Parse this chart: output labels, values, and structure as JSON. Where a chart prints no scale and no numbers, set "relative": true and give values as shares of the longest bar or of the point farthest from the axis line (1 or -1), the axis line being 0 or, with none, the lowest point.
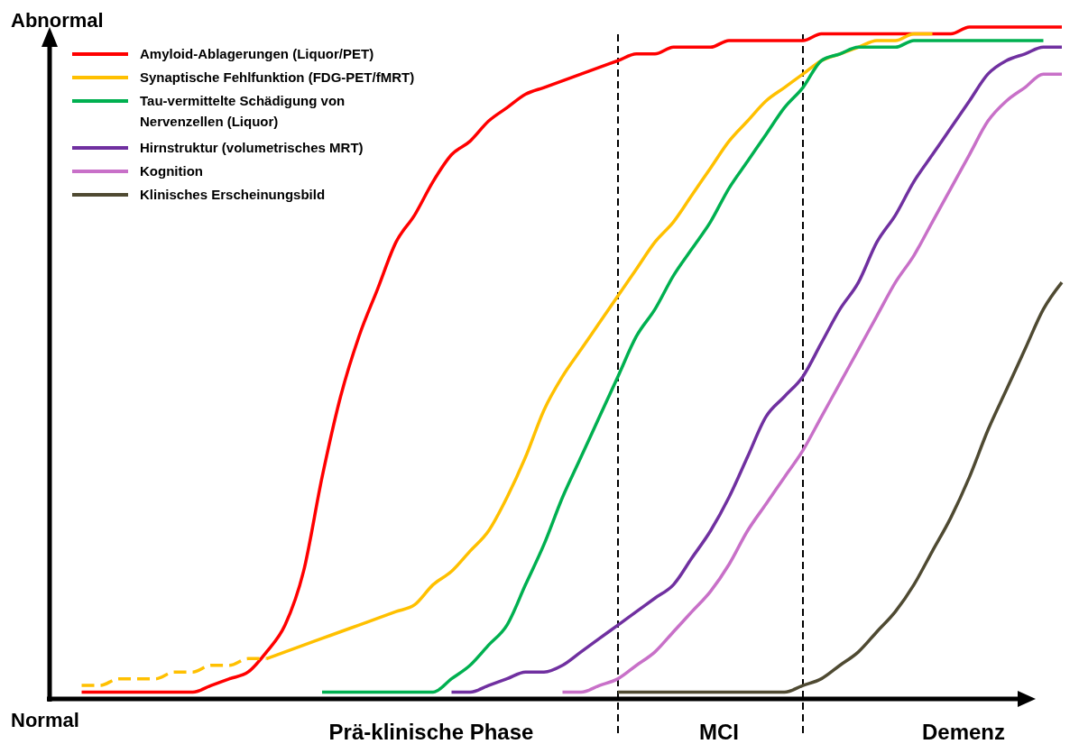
{
  "chart_data": {
    "type": "line",
    "relative": true,
    "legend": "top left",
    "categories": [
      null,
      null,
      null,
      null,
      null,
      null,
      null,
      null,
      null,
      null,
      null,
      null,
      null,
      null,
      null,
      null,
      null,
      null,
      null,
      null,
      null,
      null,
      null,
      null,
      null,
      null,
      null,
      null,
      null,
      null,
      null,
      null,
      null,
      null,
      null,
      null,
      null,
      null,
      null,
      null,
      null,
      null,
      null,
      null,
      null,
      null,
      null,
      null,
      null,
      null,
      null,
      null,
      null,
      null
    ],
    "series": [
      {
        "name": "Amyloid-Ablagerungen (Liquor/PET)",
        "color": "#ff0000",
        "values": [
          0.01,
          0.01,
          0.01,
          0.01,
          0.01,
          0.01,
          0.01,
          0.02,
          0.03,
          0.04,
          0.07,
          0.11,
          0.19,
          0.33,
          0.45,
          0.54,
          0.61,
          0.68,
          0.72,
          0.77,
          0.81,
          0.83,
          0.86,
          0.88,
          0.9,
          0.91,
          0.92,
          0.93,
          0.94,
          0.95,
          0.96,
          0.96,
          0.97,
          0.97,
          0.97,
          0.98,
          0.98,
          0.98,
          0.98,
          0.98,
          0.99,
          0.99,
          0.99,
          0.99,
          0.99,
          0.99,
          0.99,
          0.99,
          1,
          1,
          1,
          1,
          1,
          1
        ]
      },
      {
        "color": "#ffc000",
        "line_style": "dashed",
        "values": [
          0.02,
          0.02,
          0.03,
          0.03,
          0.03,
          0.04,
          0.04,
          0.05,
          0.05,
          0.06,
          0.06,
          null,
          null,
          null,
          null,
          null,
          null,
          null,
          null,
          null,
          null,
          null,
          null,
          null,
          null,
          null,
          null,
          null,
          null,
          null,
          null,
          null,
          null,
          null,
          null,
          null,
          null,
          null,
          null,
          null,
          null,
          null,
          null,
          null,
          null,
          null,
          null,
          null,
          null,
          null,
          null,
          null,
          null,
          null
        ]
      },
      {
        "name": "Synaptische Fehlfunktion (FDG-PET/fMRT)",
        "color": "#ffc000",
        "values": [
          null,
          null,
          null,
          null,
          null,
          null,
          null,
          null,
          null,
          null,
          0.06,
          0.07,
          0.08,
          0.09,
          0.1,
          0.11,
          0.12,
          0.13,
          0.14,
          0.17,
          0.19,
          0.22,
          0.25,
          0.3,
          0.36,
          0.43,
          0.48,
          0.52,
          0.56,
          0.6,
          0.64,
          0.68,
          0.71,
          0.75,
          0.79,
          0.83,
          0.86,
          0.89,
          0.91,
          0.93,
          0.95,
          0.96,
          0.97,
          0.98,
          0.98,
          0.99,
          0.99,
          null,
          null,
          null,
          null,
          null,
          null,
          null
        ]
      },
      {
        "name": "Tau-vermittelte Schädigung von Nervenzellen (Liquor)",
        "color": "#00b050",
        "values": [
          null,
          null,
          null,
          null,
          null,
          null,
          null,
          null,
          null,
          null,
          null,
          null,
          null,
          0.01,
          0.01,
          0.01,
          0.01,
          0.01,
          0.01,
          0.01,
          0.03,
          0.05,
          0.08,
          0.11,
          0.17,
          0.23,
          0.3,
          0.36,
          0.42,
          0.48,
          0.54,
          0.58,
          0.63,
          0.67,
          0.71,
          0.76,
          0.8,
          0.84,
          0.88,
          0.91,
          0.95,
          0.96,
          0.97,
          0.97,
          0.97,
          0.98,
          0.98,
          0.98,
          0.98,
          0.98,
          0.98,
          0.98,
          0.98,
          null
        ]
      },
      {
        "name": "Hirnstruktur (volumetrisches MRT)",
        "color": "#7030a0",
        "values": [
          null,
          null,
          null,
          null,
          null,
          null,
          null,
          null,
          null,
          null,
          null,
          null,
          null,
          null,
          null,
          null,
          null,
          null,
          null,
          null,
          0.01,
          0.01,
          0.02,
          0.03,
          0.04,
          0.04,
          0.05,
          0.07,
          0.09,
          0.11,
          0.13,
          0.15,
          0.17,
          0.21,
          0.25,
          0.3,
          0.36,
          0.42,
          0.45,
          0.48,
          0.53,
          0.58,
          0.62,
          0.68,
          0.72,
          0.77,
          0.81,
          0.85,
          0.89,
          0.93,
          0.95,
          0.96,
          0.97,
          0.97
        ]
      },
      {
        "name": "Kognition",
        "color": "#c870c8",
        "values": [
          null,
          null,
          null,
          null,
          null,
          null,
          null,
          null,
          null,
          null,
          null,
          null,
          null,
          null,
          null,
          null,
          null,
          null,
          null,
          null,
          null,
          null,
          null,
          null,
          null,
          null,
          0.01,
          0.01,
          0.02,
          0.03,
          0.05,
          0.07,
          0.1,
          0.13,
          0.16,
          0.2,
          0.25,
          0.29,
          0.33,
          0.37,
          0.42,
          0.47,
          0.52,
          0.57,
          0.62,
          0.66,
          0.71,
          0.76,
          0.81,
          0.86,
          0.89,
          0.91,
          0.93,
          0.93
        ]
      },
      {
        "name": "Klinisches Erscheinungsbild",
        "color": "#4f4a32",
        "values": [
          null,
          null,
          null,
          null,
          null,
          null,
          null,
          null,
          null,
          null,
          null,
          null,
          null,
          null,
          null,
          null,
          null,
          null,
          null,
          null,
          null,
          null,
          null,
          null,
          null,
          null,
          null,
          null,
          null,
          0.01,
          0.01,
          0.01,
          0.01,
          0.01,
          0.01,
          0.01,
          0.01,
          0.01,
          0.01,
          0.02,
          0.03,
          0.05,
          0.07,
          0.1,
          0.13,
          0.17,
          0.22,
          0.27,
          0.33,
          0.4,
          0.46,
          0.52,
          0.58,
          0.62
        ]
      }
    ],
    "annotations": [
      "Abnormal",
      "Normal",
      "Prä-klinische Phase",
      "MCI",
      "Demenz"
    ]
  }
}
